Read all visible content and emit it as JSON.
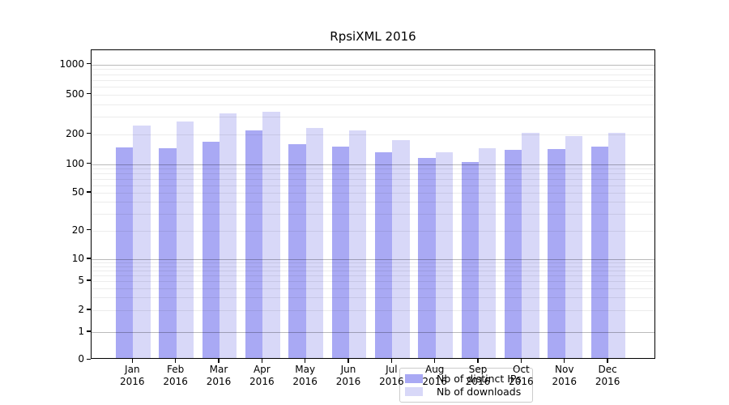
{
  "title": "RpsiXML 2016",
  "colors": {
    "ips_bar": "#a9a9f4",
    "downloads_bar": "#d8d8f8",
    "grid_major": "#b9b9b9",
    "grid_minor": "#ececec",
    "axis": "#000000"
  },
  "legend": {
    "position": "lower center",
    "items": [
      {
        "label": "Nb of distinct IPs",
        "swatch": "ips-swatch"
      },
      {
        "label": "Nb of downloads",
        "swatch": "downloads-swatch"
      }
    ]
  },
  "x_axis": {
    "year_label": "2016",
    "tick_labels": [
      "Jan 2016",
      "Feb 2016",
      "Mar 2016",
      "Apr 2016",
      "May 2016",
      "Jun 2016",
      "Jul 2016",
      "Aug 2016",
      "Sep 2016",
      "Oct 2016",
      "Nov 2016",
      "Dec 2016"
    ]
  },
  "y_axis": {
    "scale": "log-like (symlog)",
    "tick_labels": [
      "0",
      "1",
      "2",
      "5",
      "10",
      "20",
      "50",
      "100",
      "200",
      "500",
      "1000"
    ]
  },
  "chart_data": {
    "type": "bar",
    "title": "RpsiXML 2016",
    "categories": [
      "Jan",
      "Feb",
      "Mar",
      "Apr",
      "May",
      "Jun",
      "Jul",
      "Aug",
      "Sep",
      "Oct",
      "Nov",
      "Dec"
    ],
    "year": "2016",
    "series": [
      {
        "name": "Nb of distinct IPs",
        "color": "#a9a9f4",
        "values": [
          143,
          139,
          161,
          212,
          152,
          146,
          128,
          111,
          102,
          135,
          138,
          144
        ]
      },
      {
        "name": "Nb of downloads",
        "color": "#d8d8f8",
        "values": [
          236,
          257,
          312,
          324,
          222,
          212,
          167,
          126,
          139,
          200,
          186,
          198
        ]
      }
    ],
    "yticks": [
      0,
      1,
      2,
      5,
      10,
      20,
      50,
      100,
      200,
      500,
      1000
    ],
    "ylim": [
      0,
      1000
    ],
    "yscale": "symlog",
    "grid": true,
    "legend_position": "lower center"
  }
}
